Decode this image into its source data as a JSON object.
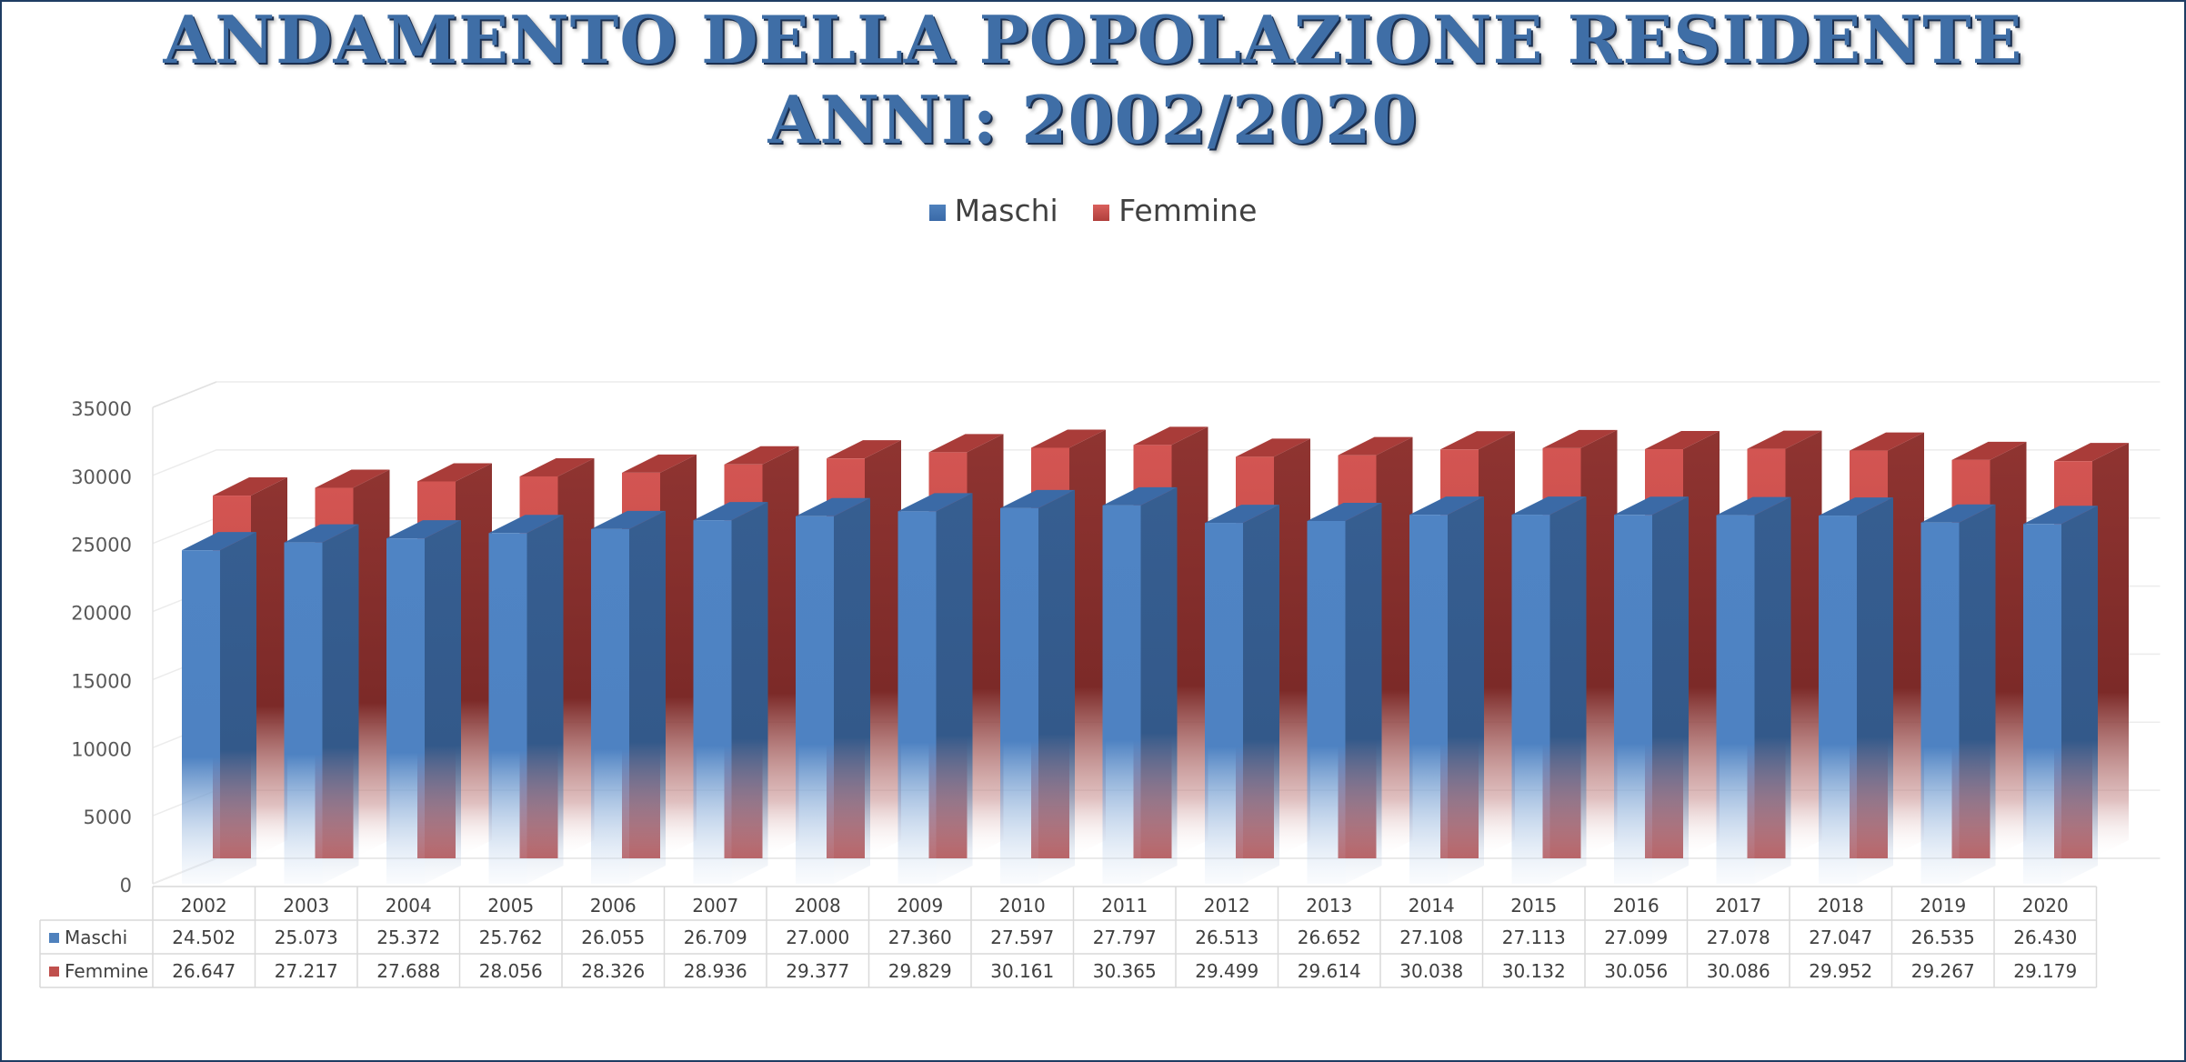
{
  "chart_data": {
    "type": "bar",
    "title": "ANDAMENTO DELLA POPOLAZIONE RESIDENTE",
    "subtitle": "ANNI: 2002/2020",
    "categories": [
      "2002",
      "2003",
      "2004",
      "2005",
      "2006",
      "2007",
      "2008",
      "2009",
      "2010",
      "2011",
      "2012",
      "2013",
      "2014",
      "2015",
      "2016",
      "2017",
      "2018",
      "2019",
      "2020"
    ],
    "series": [
      {
        "name": "Maschi",
        "color": "#4f81bd",
        "values": [
          24502,
          25073,
          25372,
          25762,
          26055,
          26709,
          27000,
          27360,
          27597,
          27797,
          26513,
          26652,
          27108,
          27113,
          27099,
          27078,
          27047,
          26535,
          26430
        ],
        "labels": [
          "24.502",
          "25.073",
          "25.372",
          "25.762",
          "26.055",
          "26.709",
          "27.000",
          "27.360",
          "27.597",
          "27.797",
          "26.513",
          "26.652",
          "27.108",
          "27.113",
          "27.099",
          "27.078",
          "27.047",
          "26.535",
          "26.430"
        ]
      },
      {
        "name": "Femmine",
        "color": "#c0504d",
        "values": [
          26647,
          27217,
          27688,
          28056,
          28326,
          28936,
          29377,
          29829,
          30161,
          30365,
          29499,
          29614,
          30038,
          30132,
          30056,
          30086,
          29952,
          29267,
          29179
        ],
        "labels": [
          "26.647",
          "27.217",
          "27.688",
          "28.056",
          "28.326",
          "28.936",
          "29.377",
          "29.829",
          "30.161",
          "30.365",
          "29.499",
          "29.614",
          "30.038",
          "30.132",
          "30.056",
          "30.086",
          "29.952",
          "29.267",
          "29.179"
        ]
      }
    ],
    "ylim": [
      0,
      35000
    ],
    "yticks": [
      0,
      5000,
      10000,
      15000,
      20000,
      25000,
      30000,
      35000
    ],
    "style": "3d-column",
    "legend_position": "top",
    "data_table": true,
    "grid": true
  }
}
